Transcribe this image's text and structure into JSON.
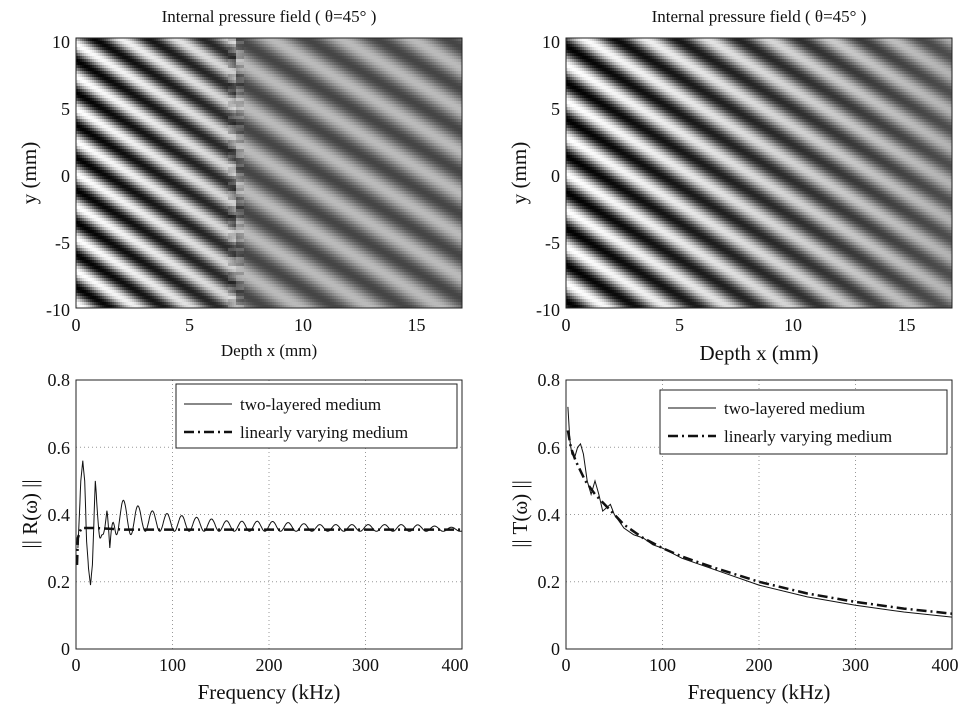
{
  "chart_data": [
    {
      "type": "heatmap",
      "title": "Internal pressure field ( θ=45° )",
      "xlabel": "Depth x (mm)",
      "ylabel": "y (mm)",
      "xlim": [
        0,
        17
      ],
      "ylim": [
        -10,
        10
      ],
      "xticks": [
        "0",
        "5",
        "10",
        "15"
      ],
      "yticks": [
        "10",
        "5",
        "0",
        "-5",
        "-10"
      ],
      "colormap": "grayscale",
      "interface_x": 7,
      "stripe_period_layer1": 2.4,
      "stripe_period_layer2": 3.1
    },
    {
      "type": "heatmap",
      "title": "Internal pressure field ( θ=45° )",
      "xlabel": "Depth x (mm)",
      "ylabel": "y (mm)",
      "xlim": [
        0,
        17
      ],
      "ylim": [
        -10,
        10
      ],
      "xticks": [
        "0",
        "5",
        "10",
        "15"
      ],
      "yticks": [
        "10",
        "5",
        "0",
        "-5",
        "-10"
      ],
      "colormap": "grayscale",
      "stripe_period": 2.7
    },
    {
      "type": "line",
      "xlabel": "Frequency (kHz)",
      "ylabel": "|| R(ω) ||",
      "xlim": [
        0,
        400
      ],
      "ylim": [
        0,
        0.8
      ],
      "xticks": [
        "0",
        "100",
        "200",
        "300",
        "400"
      ],
      "yticks": [
        "0.8",
        "0.6",
        "0.4",
        "0.2",
        "0"
      ],
      "grid": true,
      "legend_position": "top-right",
      "series": [
        {
          "name": "two-layered medium",
          "style": "solid",
          "x": [
            2,
            5,
            7,
            9,
            11,
            13,
            15,
            17,
            20,
            23,
            26,
            29,
            32,
            35,
            40,
            50,
            60,
            70,
            80,
            100,
            130,
            160,
            200,
            250,
            300,
            350,
            400
          ],
          "y": [
            0.3,
            0.5,
            0.56,
            0.5,
            0.32,
            0.24,
            0.19,
            0.25,
            0.5,
            0.4,
            0.26,
            0.41,
            0.44,
            0.3,
            0.47,
            0.44,
            0.43,
            0.42,
            0.41,
            0.4,
            0.39,
            0.38,
            0.38,
            0.37,
            0.37,
            0.37,
            0.36
          ],
          "oscillation_lower_envelope": [
            0.19,
            0.22,
            0.24,
            0.26,
            0.28,
            0.3,
            0.31,
            0.32,
            0.33,
            0.33,
            0.34,
            0.34,
            0.34,
            0.34,
            0.34,
            0.34,
            0.34,
            0.35,
            0.35,
            0.35,
            0.35,
            0.35,
            0.35,
            0.35,
            0.35,
            0.35,
            0.35
          ]
        },
        {
          "name": "linearly varying medium",
          "style": "dashdot",
          "x": [
            1,
            2,
            4,
            6,
            8,
            10,
            15,
            20,
            50,
            100,
            200,
            300,
            400
          ],
          "y": [
            0.25,
            0.33,
            0.35,
            0.36,
            0.36,
            0.36,
            0.36,
            0.36,
            0.355,
            0.355,
            0.355,
            0.355,
            0.355
          ]
        }
      ]
    },
    {
      "type": "line",
      "xlabel": "Frequency (kHz)",
      "ylabel": "|| T(ω) ||",
      "xlim": [
        0,
        400
      ],
      "ylim": [
        0,
        0.8
      ],
      "xticks": [
        "0",
        "100",
        "200",
        "300",
        "400"
      ],
      "yticks": [
        "0.8",
        "0.6",
        "0.4",
        "0.2",
        "0"
      ],
      "grid": true,
      "legend_position": "top-right",
      "series": [
        {
          "name": "two-layered medium",
          "style": "solid",
          "x": [
            2,
            4,
            6,
            9,
            12,
            15,
            18,
            22,
            26,
            30,
            34,
            38,
            42,
            46,
            50,
            55,
            60,
            70,
            80,
            90,
            100,
            120,
            150,
            200,
            250,
            300,
            350,
            400
          ],
          "y": [
            0.72,
            0.62,
            0.58,
            0.57,
            0.6,
            0.61,
            0.58,
            0.5,
            0.46,
            0.5,
            0.46,
            0.41,
            0.42,
            0.43,
            0.4,
            0.38,
            0.36,
            0.34,
            0.33,
            0.31,
            0.3,
            0.27,
            0.24,
            0.19,
            0.155,
            0.13,
            0.11,
            0.095
          ]
        },
        {
          "name": "linearly varying medium",
          "style": "dashdot",
          "x": [
            2,
            5,
            10,
            20,
            30,
            40,
            50,
            60,
            70,
            80,
            100,
            120,
            150,
            200,
            250,
            300,
            350,
            400
          ],
          "y": [
            0.65,
            0.6,
            0.56,
            0.5,
            0.46,
            0.43,
            0.4,
            0.37,
            0.35,
            0.33,
            0.3,
            0.275,
            0.245,
            0.2,
            0.165,
            0.14,
            0.12,
            0.105
          ]
        }
      ]
    }
  ]
}
